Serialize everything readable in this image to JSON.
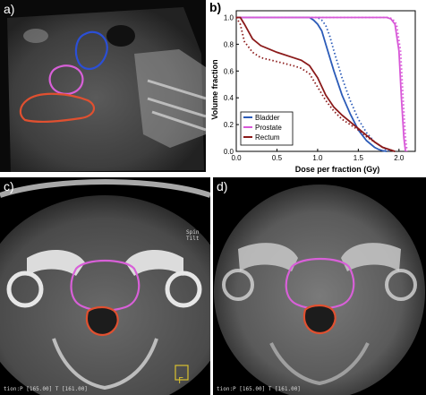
{
  "panels": {
    "a": {
      "label": "a)"
    },
    "b": {
      "label": "b)"
    },
    "c": {
      "label": "c)",
      "overlay_text": [
        "Spin",
        "Tilt"
      ],
      "footer_text": "tion:P [165.00] T [161.00]",
      "corner_glyph": "F"
    },
    "d": {
      "label": "d)",
      "footer_text": "tion:P [165.00] T [161.00]"
    }
  },
  "contour_colors": {
    "bladder": "#2b4fd6",
    "prostate": "#d860d8",
    "rectum": "#e05030"
  },
  "chart_data": {
    "type": "line",
    "title": "",
    "xlabel": "Dose per fraction (Gy)",
    "ylabel": "Volume fraction",
    "xlim": [
      0,
      2.2
    ],
    "ylim": [
      0,
      1.05
    ],
    "xticks": [
      "0.0",
      "0.5",
      "1.0",
      "1.5",
      "2.0"
    ],
    "yticks": [
      "0.0",
      "0.2",
      "0.4",
      "0.6",
      "0.8",
      "1.0"
    ],
    "grid": false,
    "legend_position": "bottom-left",
    "series": [
      {
        "name": "Bladder",
        "color": "#2b5bb8",
        "style": "solid",
        "x": [
          0,
          0.05,
          0.9,
          0.95,
          1.0,
          1.05,
          1.1,
          1.2,
          1.3,
          1.4,
          1.5,
          1.6,
          1.7,
          1.75,
          1.8,
          1.85
        ],
        "y": [
          1.0,
          1.0,
          1.0,
          0.98,
          0.95,
          0.9,
          0.8,
          0.6,
          0.42,
          0.28,
          0.16,
          0.08,
          0.03,
          0.015,
          0.005,
          0.0
        ]
      },
      {
        "name": "",
        "color": "#2b5bb8",
        "style": "dotted",
        "x": [
          0,
          0.05,
          1.0,
          1.05,
          1.1,
          1.15,
          1.2,
          1.3,
          1.4,
          1.5,
          1.6,
          1.7,
          1.8,
          1.85,
          1.9
        ],
        "y": [
          1.0,
          1.0,
          1.0,
          0.98,
          0.94,
          0.86,
          0.75,
          0.55,
          0.38,
          0.24,
          0.14,
          0.07,
          0.03,
          0.01,
          0.0
        ]
      },
      {
        "name": "Prostate",
        "color": "#d858d8",
        "style": "solid",
        "x": [
          0,
          0.05,
          1.85,
          1.9,
          1.95,
          2.0,
          2.03,
          2.06,
          2.08
        ],
        "y": [
          1.0,
          1.0,
          1.0,
          0.99,
          0.95,
          0.75,
          0.4,
          0.1,
          0.0
        ]
      },
      {
        "name": "",
        "color": "#d858d8",
        "style": "dotted",
        "x": [
          0,
          0.05,
          1.87,
          1.92,
          1.97,
          2.02,
          2.05,
          2.08,
          2.1
        ],
        "y": [
          1.0,
          1.0,
          1.0,
          0.99,
          0.95,
          0.75,
          0.4,
          0.1,
          0.0
        ]
      },
      {
        "name": "Rectum",
        "color": "#8b1a1a",
        "style": "solid",
        "x": [
          0,
          0.05,
          0.1,
          0.2,
          0.3,
          0.5,
          0.7,
          0.8,
          0.9,
          1.0,
          1.1,
          1.2,
          1.3,
          1.4,
          1.5,
          1.6,
          1.7,
          1.8,
          1.9,
          1.95
        ],
        "y": [
          1.0,
          1.0,
          0.95,
          0.84,
          0.79,
          0.74,
          0.7,
          0.68,
          0.64,
          0.55,
          0.42,
          0.33,
          0.27,
          0.22,
          0.17,
          0.12,
          0.07,
          0.03,
          0.01,
          0.0
        ]
      },
      {
        "name": "",
        "color": "#8b1a1a",
        "style": "dotted",
        "x": [
          0,
          0.05,
          0.1,
          0.2,
          0.3,
          0.5,
          0.7,
          0.8,
          0.9,
          1.0,
          1.1,
          1.2,
          1.3,
          1.4,
          1.5,
          1.6,
          1.7,
          1.8,
          1.9,
          1.95
        ],
        "y": [
          1.0,
          0.95,
          0.82,
          0.74,
          0.7,
          0.67,
          0.64,
          0.62,
          0.58,
          0.48,
          0.38,
          0.3,
          0.24,
          0.2,
          0.16,
          0.11,
          0.07,
          0.03,
          0.01,
          0.0
        ]
      }
    ]
  }
}
